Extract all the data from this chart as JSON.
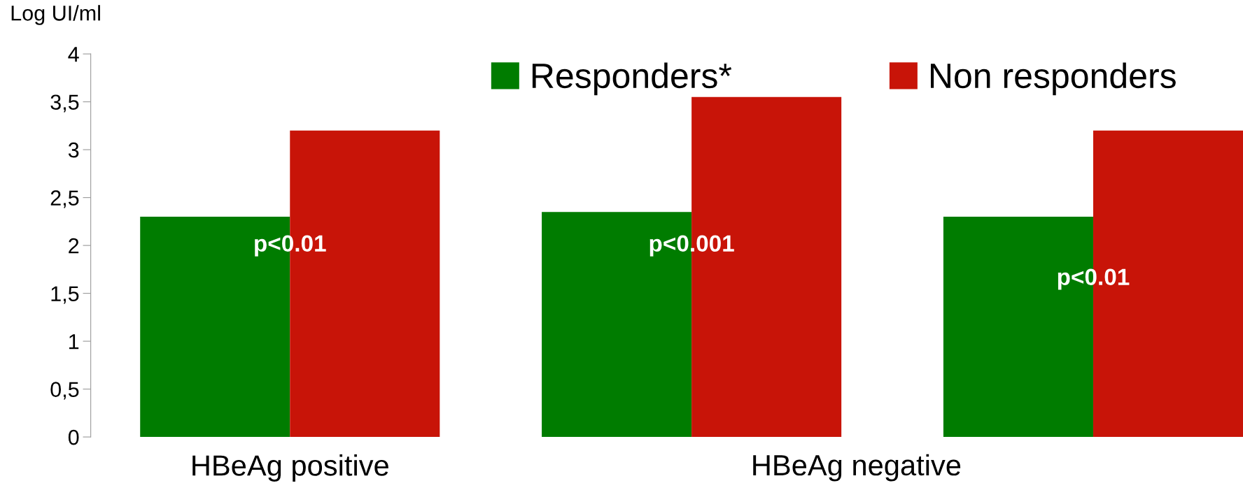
{
  "chart_data": {
    "type": "bar",
    "ylabel": "Log UI/ml",
    "categories": [
      "HBeAg positive",
      null,
      null
    ],
    "series": [
      {
        "name": "Responders*",
        "color": "#007c00",
        "values": [
          2.3,
          2.35,
          2.3
        ]
      },
      {
        "name": "Non responders",
        "color": "#c81408",
        "values": [
          3.2,
          3.55,
          3.2
        ]
      }
    ],
    "ylim": [
      0,
      4
    ],
    "yticks": [
      0,
      {
        "value": 0.5,
        "label": "0,5"
      },
      1,
      {
        "value": 1.5,
        "label": "1,5"
      },
      2,
      {
        "value": 2.5,
        "label": "2,5"
      },
      3,
      {
        "value": 3.5,
        "label": "3,5"
      },
      4
    ],
    "annotations": [
      "p<0.01",
      "p<0.001",
      "p<0.01",
      "HBeAg negative"
    ],
    "grid": false,
    "legend": "top right"
  }
}
